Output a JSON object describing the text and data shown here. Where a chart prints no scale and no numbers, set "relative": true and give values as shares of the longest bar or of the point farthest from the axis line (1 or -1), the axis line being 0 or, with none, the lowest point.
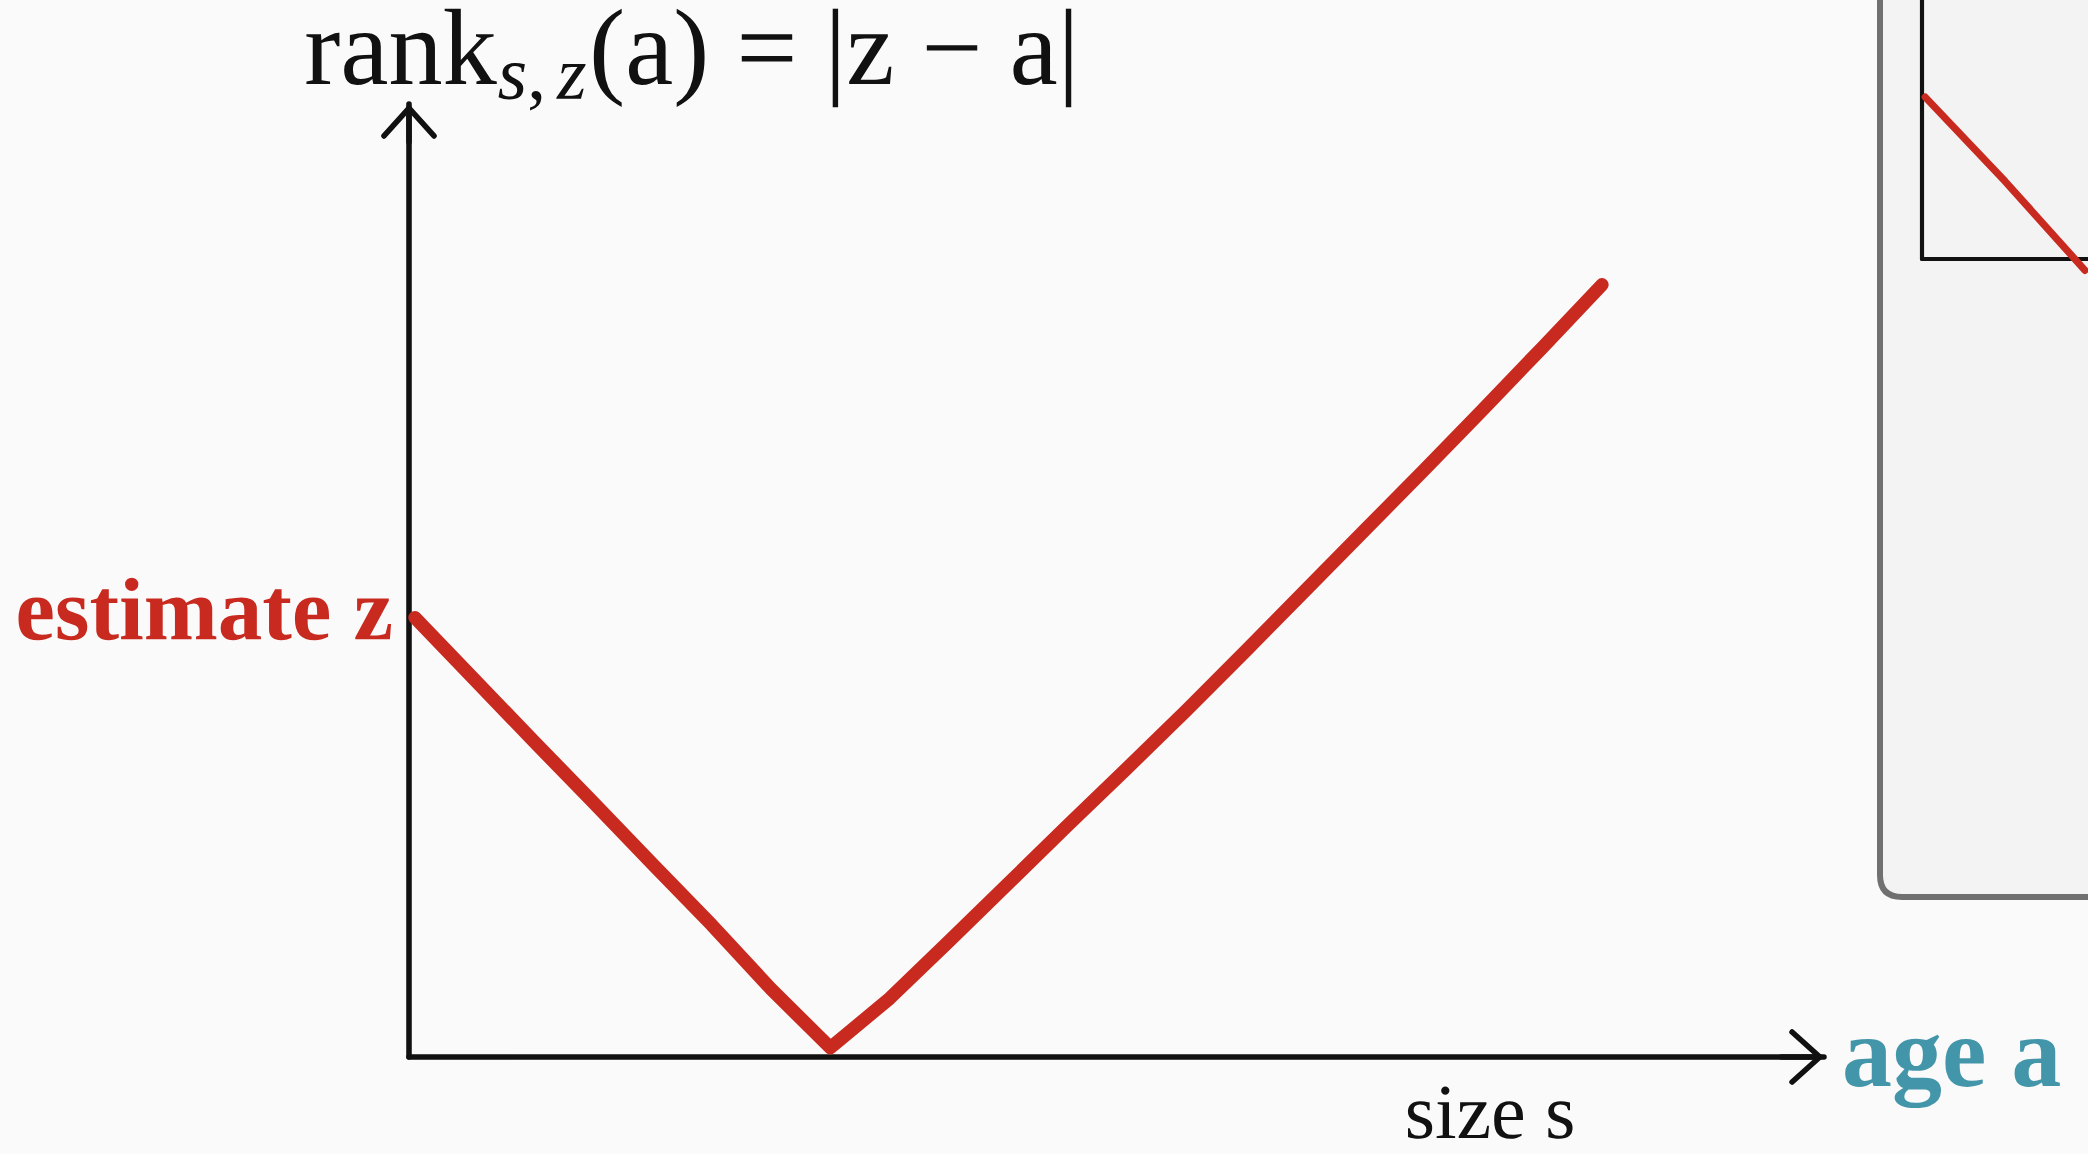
{
  "chart_data": [
    {
      "type": "line",
      "ylabel": "rank$_{s,z}$(a) = |z − a|",
      "xlabel": "age a",
      "relative": true,
      "categories": [
        null,
        null,
        null,
        null,
        null,
        null,
        null,
        null,
        null,
        null,
        null,
        null,
        null,
        null,
        null,
        null,
        null,
        null,
        null,
        null,
        null
      ],
      "series": [
        {
          "color": "#c92a1f",
          "values": [
            0.569,
            0.489,
            0.409,
            0.33,
            0.25,
            0.171,
            0.088,
            0.012,
            0.076,
            0.15,
            0.225,
            0.3,
            0.374,
            0.449,
            0.526,
            0.604,
            0.682,
            0.76,
            0.839,
            0.919,
            1
          ]
        }
      ],
      "annotations": [
        "estimate z",
        "size s"
      ]
    },
    {
      "type": "line",
      "relative": true,
      "categories": [
        null,
        null,
        null
      ],
      "series": [
        {
          "color": "#c92a1f",
          "values": [
            1,
            0.48,
            -0.07
          ]
        }
      ]
    }
  ]
}
